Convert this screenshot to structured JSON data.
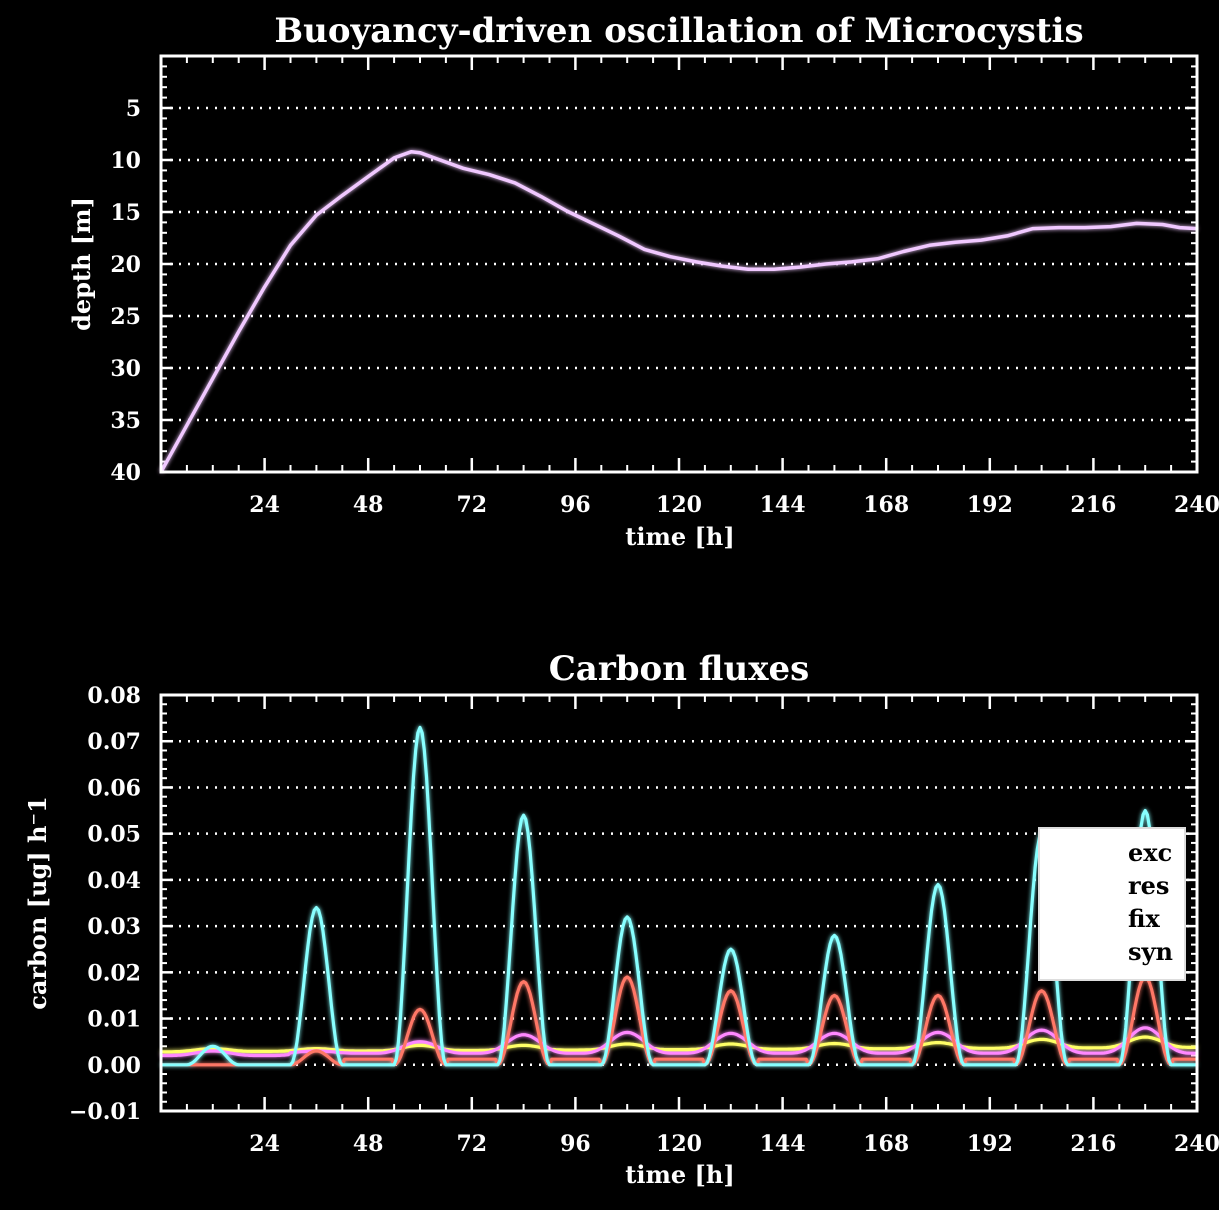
{
  "chart_data": [
    {
      "type": "line",
      "title": "Buoyancy-driven oscillation of Microcystis",
      "xlabel": "time [h]",
      "ylabel": "depth [m]",
      "xlim": [
        0,
        240
      ],
      "ylim": [
        40,
        0
      ],
      "y_inverted": true,
      "grid": "horizontal dotted",
      "xticks": [
        "24",
        "48",
        "72",
        "96",
        "120",
        "144",
        "168",
        "192",
        "216",
        "240"
      ],
      "yticks": [
        "5",
        "10",
        "15",
        "20",
        "25",
        "30",
        "35",
        "40"
      ],
      "series": [
        {
          "color": "#f0c8ff",
          "x": [
            0,
            6,
            12,
            18,
            24,
            30,
            36,
            42,
            48,
            54,
            58,
            60,
            64,
            70,
            76,
            82,
            88,
            94,
            100,
            106,
            112,
            118,
            124,
            130,
            136,
            142,
            148,
            154,
            160,
            166,
            172,
            178,
            184,
            190,
            196,
            202,
            208,
            214,
            220,
            226,
            232,
            236,
            240
          ],
          "y": [
            40,
            35.5,
            31,
            26.5,
            22.2,
            18.2,
            15.3,
            13.4,
            11.6,
            9.8,
            9.2,
            9.3,
            9.9,
            10.8,
            11.4,
            12.2,
            13.5,
            14.9,
            16.1,
            17.3,
            18.6,
            19.3,
            19.8,
            20.2,
            20.5,
            20.5,
            20.3,
            20.0,
            19.8,
            19.5,
            18.8,
            18.2,
            17.9,
            17.7,
            17.3,
            16.6,
            16.5,
            16.5,
            16.4,
            16.1,
            16.2,
            16.5,
            16.6
          ]
        }
      ]
    },
    {
      "type": "line",
      "title": "Carbon fluxes",
      "xlabel": "time [h]",
      "ylabel": "carbon [ug] h⁻1",
      "xlim": [
        0,
        240
      ],
      "ylim": [
        -0.01,
        0.08
      ],
      "grid": "horizontal dotted",
      "legend": "right",
      "xticks": [
        "24",
        "48",
        "72",
        "96",
        "120",
        "144",
        "168",
        "192",
        "216",
        "240"
      ],
      "yticks": [
        "−0.01",
        "0.00",
        "0.01",
        "0.02",
        "0.03",
        "0.04",
        "0.05",
        "0.06",
        "0.07",
        "0.08"
      ],
      "day_peaks": {
        "times": [
          12,
          36,
          60,
          84,
          108,
          132,
          156,
          180,
          204,
          228
        ],
        "fix": [
          0.004,
          0.034,
          0.073,
          0.054,
          0.032,
          0.025,
          0.028,
          0.039,
          0.05,
          0.055
        ],
        "syn": [
          0.0,
          0.003,
          0.012,
          0.018,
          0.019,
          0.016,
          0.015,
          0.015,
          0.016,
          0.019
        ],
        "res": [
          0.003,
          0.003,
          0.005,
          0.0065,
          0.007,
          0.0068,
          0.0068,
          0.007,
          0.0075,
          0.008
        ],
        "exc": [
          0.0035,
          0.0035,
          0.0042,
          0.0042,
          0.0045,
          0.0045,
          0.0046,
          0.0048,
          0.0055,
          0.006
        ]
      },
      "series": [
        {
          "name": "exc",
          "color": "#ffff66"
        },
        {
          "name": "res",
          "color": "#ff88ff"
        },
        {
          "name": "fix",
          "color": "#88ffff"
        },
        {
          "name": "syn",
          "color": "#ff7766"
        }
      ]
    }
  ]
}
